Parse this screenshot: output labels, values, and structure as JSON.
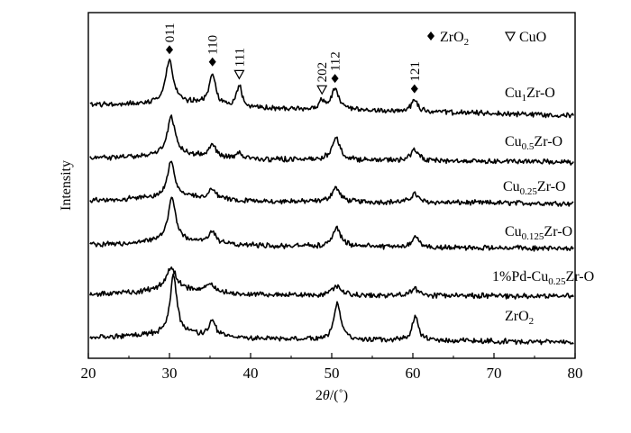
{
  "chart_data": {
    "type": "line",
    "title": "",
    "xlabel_parts": {
      "before": "2",
      "italic": "θ",
      "after": "/(˚)"
    },
    "ylabel": "Intensity",
    "xlim": [
      20,
      80
    ],
    "xticks": [
      20,
      30,
      40,
      50,
      60,
      70,
      80
    ],
    "yticks_shown": false,
    "grid": false,
    "legend_position": "top-right",
    "legend": [
      {
        "symbol": "filled-diamond",
        "base": "ZrO",
        "sub": "2"
      },
      {
        "symbol": "open-triangle-down",
        "base": "CuO",
        "sub": ""
      }
    ],
    "peak_annotations": [
      {
        "label": "011",
        "x": 30.0,
        "phase": "ZrO2"
      },
      {
        "label": "110",
        "x": 35.3,
        "phase": "ZrO2"
      },
      {
        "label": "111",
        "x": 38.6,
        "phase": "CuO"
      },
      {
        "label": "202",
        "x": 48.8,
        "phase": "CuO"
      },
      {
        "label": "112",
        "x": 50.4,
        "phase": "ZrO2"
      },
      {
        "label": "121",
        "x": 60.2,
        "phase": "ZrO2"
      }
    ],
    "series": [
      {
        "name_parts": [
          {
            "t": "Cu"
          },
          {
            "t": "1",
            "sub": true
          },
          {
            "t": "Zr-O"
          }
        ],
        "baseline": 0.26,
        "end": 0.0,
        "peaks": [
          {
            "x": 30.0,
            "h": 1.05,
            "w": 0.55
          },
          {
            "x": 35.3,
            "h": 0.8,
            "w": 0.45
          },
          {
            "x": 38.6,
            "h": 0.55,
            "w": 0.35
          },
          {
            "x": 48.8,
            "h": 0.2,
            "w": 0.4
          },
          {
            "x": 50.4,
            "h": 0.52,
            "w": 0.55
          },
          {
            "x": 60.2,
            "h": 0.32,
            "w": 0.45
          }
        ]
      },
      {
        "name_parts": [
          {
            "t": "Cu"
          },
          {
            "t": "0.5",
            "sub": true
          },
          {
            "t": "Zr-O"
          }
        ],
        "baseline": 0.1,
        "end": 0.0,
        "peaks": [
          {
            "x": 30.2,
            "h": 0.95,
            "w": 0.55
          },
          {
            "x": 35.3,
            "h": 0.32,
            "w": 0.45
          },
          {
            "x": 38.6,
            "h": 0.18,
            "w": 0.35
          },
          {
            "x": 50.5,
            "h": 0.55,
            "w": 0.6
          },
          {
            "x": 60.2,
            "h": 0.3,
            "w": 0.5
          }
        ]
      },
      {
        "name_parts": [
          {
            "t": "Cu"
          },
          {
            "t": "0.25",
            "sub": true
          },
          {
            "t": "Zr-O"
          }
        ],
        "baseline": 0.08,
        "end": 0.0,
        "peaks": [
          {
            "x": 30.2,
            "h": 0.85,
            "w": 0.55
          },
          {
            "x": 35.3,
            "h": 0.25,
            "w": 0.45
          },
          {
            "x": 50.5,
            "h": 0.35,
            "w": 0.6
          },
          {
            "x": 60.2,
            "h": 0.22,
            "w": 0.5
          }
        ]
      },
      {
        "name_parts": [
          {
            "t": "Cu"
          },
          {
            "t": "0.125",
            "sub": true
          },
          {
            "t": "Zr-O"
          }
        ],
        "baseline": 0.1,
        "end": 0.0,
        "peaks": [
          {
            "x": 30.3,
            "h": 1.1,
            "w": 0.55
          },
          {
            "x": 35.3,
            "h": 0.3,
            "w": 0.45
          },
          {
            "x": 50.6,
            "h": 0.45,
            "w": 0.6
          },
          {
            "x": 60.3,
            "h": 0.25,
            "w": 0.5
          }
        ]
      },
      {
        "name_parts": [
          {
            "t": "1%Pd-Cu"
          },
          {
            "t": "0.25",
            "sub": true
          },
          {
            "t": "Zr-O"
          }
        ],
        "baseline": 0.05,
        "end": 0.0,
        "peaks": [
          {
            "x": 30.2,
            "h": 0.55,
            "w": 0.8
          },
          {
            "x": 35.0,
            "h": 0.18,
            "w": 0.6
          },
          {
            "x": 50.6,
            "h": 0.22,
            "w": 0.7
          },
          {
            "x": 60.2,
            "h": 0.15,
            "w": 0.6
          }
        ]
      },
      {
        "name_parts": [
          {
            "t": "ZrO"
          },
          {
            "t": "2",
            "sub": true
          }
        ],
        "baseline": 0.12,
        "end": 0.0,
        "peaks": [
          {
            "x": 30.5,
            "h": 1.45,
            "w": 0.5
          },
          {
            "x": 35.3,
            "h": 0.4,
            "w": 0.45
          },
          {
            "x": 50.7,
            "h": 0.9,
            "w": 0.5
          },
          {
            "x": 60.3,
            "h": 0.62,
            "w": 0.45
          }
        ]
      }
    ]
  }
}
